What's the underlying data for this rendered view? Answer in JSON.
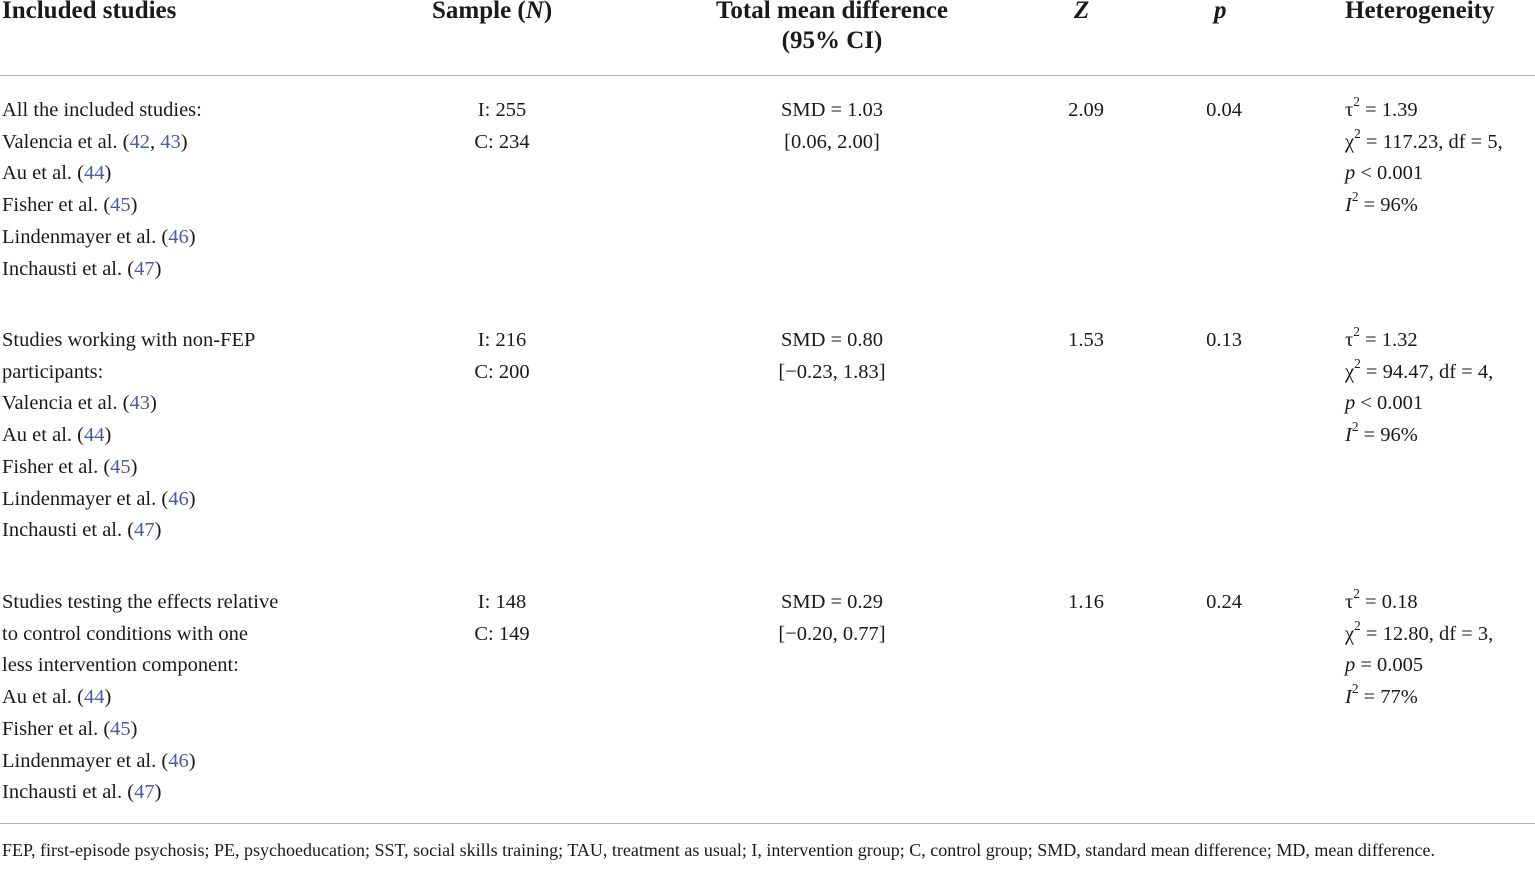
{
  "table": {
    "headers": {
      "studies": "Included studies",
      "sample_prefix": "Sample (",
      "sample_n": "N",
      "sample_suffix": ")",
      "tmd_line1": "Total mean difference",
      "tmd_line2": "(95% CI)",
      "z": "Z",
      "p": "p",
      "heterogeneity": "Heterogeneity"
    },
    "groups": [
      {
        "title_lines": [
          "All the included studies:"
        ],
        "studies": [
          {
            "name": "Valencia et al. (",
            "refs": [
              "42",
              "43"
            ],
            "close": ")"
          },
          {
            "name": "Au et al. (",
            "refs": [
              "44"
            ],
            "close": ")"
          },
          {
            "name": "Fisher et al. (",
            "refs": [
              "45"
            ],
            "close": ")"
          },
          {
            "name": "Lindenmayer et al. (",
            "refs": [
              "46"
            ],
            "close": ")"
          },
          {
            "name": "Inchausti et al. (",
            "refs": [
              "47"
            ],
            "close": ")"
          }
        ],
        "sample": [
          "I: 255",
          "C: 234"
        ],
        "tmd": [
          "SMD = 1.03",
          "[0.06, 2.00]"
        ],
        "z": "2.09",
        "p": "0.04",
        "het": {
          "tau_sym": "τ",
          "tau_sup": "2",
          "tau_val": " = 1.39",
          "chi_sym": "χ",
          "chi_sup": "2",
          "chi_val": " = 117.23, df = 5,",
          "p_sym": "p",
          "p_val": " < 0.001",
          "i_sym": "I",
          "i_sup": "2",
          "i_val": " = 96%"
        }
      },
      {
        "title_lines": [
          "Studies working with non-FEP",
          "participants:"
        ],
        "studies": [
          {
            "name": "Valencia et al. (",
            "refs": [
              "43"
            ],
            "close": ")"
          },
          {
            "name": "Au et al. (",
            "refs": [
              "44"
            ],
            "close": ")"
          },
          {
            "name": "Fisher et al. (",
            "refs": [
              "45"
            ],
            "close": ")"
          },
          {
            "name": "Lindenmayer et al. (",
            "refs": [
              "46"
            ],
            "close": ")"
          },
          {
            "name": "Inchausti et al. (",
            "refs": [
              "47"
            ],
            "close": ")"
          }
        ],
        "sample": [
          "I: 216",
          "C: 200"
        ],
        "tmd": [
          "SMD = 0.80",
          "[−0.23, 1.83]"
        ],
        "z": "1.53",
        "p": "0.13",
        "het": {
          "tau_sym": "τ",
          "tau_sup": "2",
          "tau_val": " = 1.32",
          "chi_sym": "χ",
          "chi_sup": "2",
          "chi_val": " = 94.47, df = 4,",
          "p_sym": "p",
          "p_val": " < 0.001",
          "i_sym": "I",
          "i_sup": "2",
          "i_val": " = 96%"
        }
      },
      {
        "title_lines": [
          "Studies testing the effects relative",
          "to control conditions with one",
          "less intervention component:"
        ],
        "studies": [
          {
            "name": "Au et al. (",
            "refs": [
              "44"
            ],
            "close": ")"
          },
          {
            "name": "Fisher et al. (",
            "refs": [
              "45"
            ],
            "close": ")"
          },
          {
            "name": "Lindenmayer et al. (",
            "refs": [
              "46"
            ],
            "close": ")"
          },
          {
            "name": "Inchausti et al. (",
            "refs": [
              "47"
            ],
            "close": ")"
          }
        ],
        "sample": [
          "I: 148",
          "C: 149"
        ],
        "tmd": [
          "SMD = 0.29",
          "[−0.20, 0.77]"
        ],
        "z": "1.16",
        "p": "0.24",
        "het": {
          "tau_sym": "τ",
          "tau_sup": "2",
          "tau_val": " = 0.18",
          "chi_sym": "χ",
          "chi_sup": "2",
          "chi_val": " = 12.80, df = 3,",
          "p_sym": "p",
          "p_val": " = 0.005",
          "i_sym": "I",
          "i_sup": "2",
          "i_val": " = 77%"
        }
      }
    ],
    "footnote": "FEP, first-episode psychosis; PE, psychoeducation; SST, social skills training; TAU, treatment as usual; I, intervention group; C, control group; SMD, standard mean difference; MD, mean difference."
  }
}
